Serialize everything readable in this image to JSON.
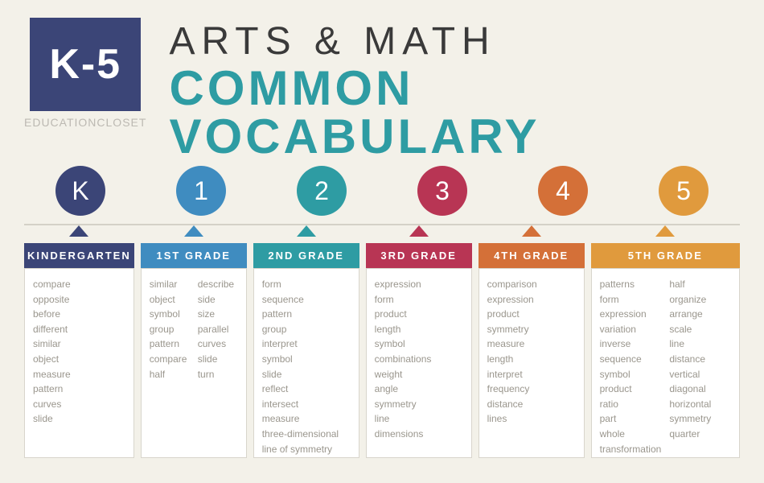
{
  "header": {
    "badge": "K-5",
    "brand": "educationcloset",
    "title_line1": "ARTS & MATH",
    "title_line2": "COMMON VOCABULARY"
  },
  "colors": {
    "badge": "#3b4577",
    "title2": "#2e9ca3",
    "circles": [
      "#3b4577",
      "#3f8cc0",
      "#2e9ca3",
      "#b83554",
      "#d47038",
      "#e09a3d"
    ],
    "tabs": [
      "#3b4577",
      "#3f8cc0",
      "#2e9ca3",
      "#b83554",
      "#d47038",
      "#e09a3d"
    ],
    "bg": "#f3f1e9"
  },
  "circles": [
    "K",
    "1",
    "2",
    "3",
    "4",
    "5"
  ],
  "grades": [
    {
      "label": "KINDERGARTEN",
      "layout": "one",
      "words": [
        "compare",
        "opposite",
        "before",
        "different",
        "similar",
        "object",
        "measure",
        "pattern",
        "curves",
        "slide"
      ]
    },
    {
      "label": "1ST GRADE",
      "layout": "two",
      "words": [
        "similar",
        "object",
        "symbol",
        "group",
        "pattern",
        "compare",
        "half",
        "describe",
        "side",
        "size",
        "parallel",
        "curves",
        "slide",
        "turn"
      ]
    },
    {
      "label": "2ND GRADE",
      "layout": "one",
      "words": [
        "form",
        "sequence",
        "pattern",
        "group",
        "interpret",
        "symbol",
        "slide",
        "reflect",
        "intersect",
        "measure",
        "three-dimensional",
        "line of symmetry"
      ]
    },
    {
      "label": "3RD GRADE",
      "layout": "one",
      "words": [
        "expression",
        "form",
        "product",
        "length",
        "symbol",
        "combinations",
        "weight",
        "angle",
        "symmetry",
        "line",
        "dimensions"
      ]
    },
    {
      "label": "4TH GRADE",
      "layout": "one",
      "words": [
        "comparison",
        "expression",
        "product",
        "symmetry",
        "measure",
        "length",
        "interpret",
        "frequency",
        "distance",
        "lines"
      ]
    },
    {
      "label": "5TH GRADE",
      "layout": "two",
      "words": [
        "patterns",
        "form",
        "expression",
        "variation",
        "inverse",
        "sequence",
        "symbol",
        "product",
        "ratio",
        "part",
        "whole",
        "transformation",
        "half",
        "organize",
        "arrange",
        "scale",
        "line",
        "distance",
        "vertical",
        "diagonal",
        "horizontal",
        "symmetry",
        "quarter"
      ]
    }
  ]
}
